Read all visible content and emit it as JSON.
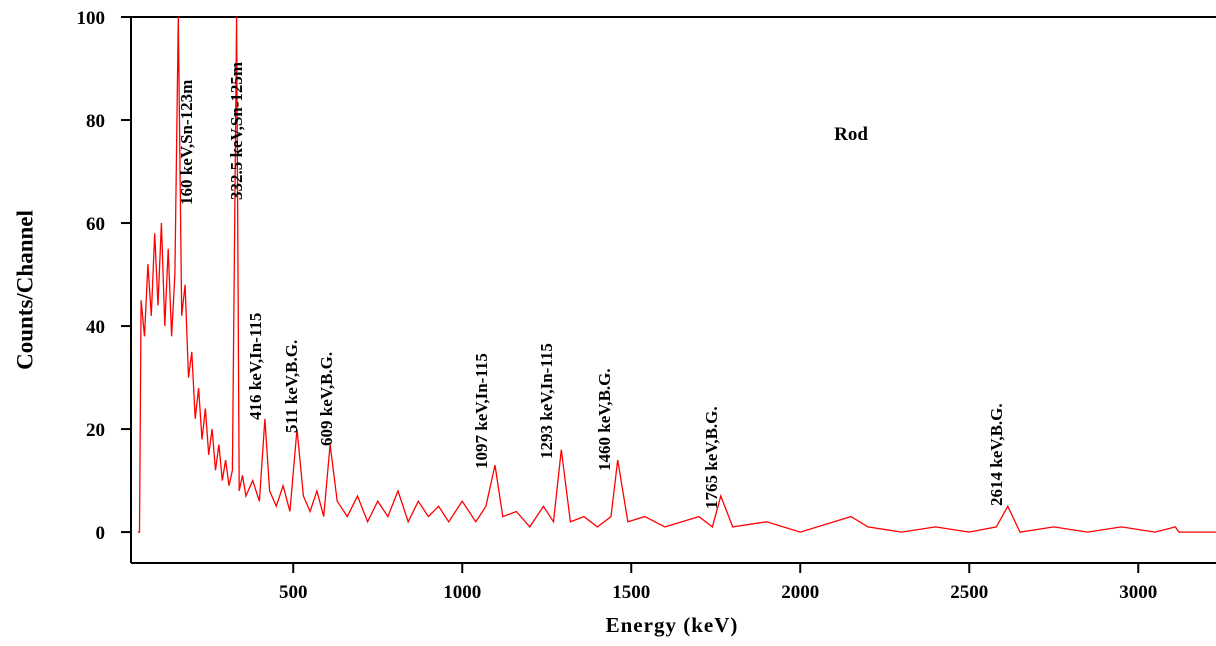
{
  "chart_data": {
    "type": "line",
    "ylabel": "Counts/Channel",
    "xlabel": "Energy (keV)",
    "series_label": "Rod",
    "annotations": [
      "160 keV,Sn-123m",
      "332.5 keV,Sn-125m",
      "416 keV,In-115",
      "511 keV,B.G.",
      "609 keV,B.G.",
      "1097 keV,In-115",
      "1293 keV,In-115",
      "1460 keV,B.G.",
      "1765 keV,B.G.",
      "2614 keV,B.G."
    ],
    "x": [
      40,
      45,
      50,
      60,
      70,
      80,
      90,
      100,
      110,
      120,
      130,
      140,
      150,
      160,
      170,
      180,
      190,
      200,
      210,
      220,
      230,
      240,
      250,
      260,
      270,
      280,
      290,
      300,
      310,
      320,
      332.5,
      340,
      350,
      360,
      380,
      400,
      416,
      430,
      450,
      470,
      490,
      511,
      530,
      550,
      570,
      590,
      609,
      630,
      660,
      690,
      720,
      750,
      780,
      810,
      840,
      870,
      900,
      930,
      960,
      1000,
      1040,
      1070,
      1097,
      1120,
      1160,
      1200,
      1240,
      1270,
      1293,
      1320,
      1360,
      1400,
      1440,
      1460,
      1490,
      1540,
      1600,
      1650,
      1700,
      1740,
      1765,
      1800,
      1900,
      2000,
      2100,
      2150,
      2200,
      2300,
      2400,
      2500,
      2580,
      2614,
      2650,
      2750,
      2850,
      2950,
      3050,
      3110,
      3120,
      3230
    ],
    "series": [
      {
        "color": "#ff0000",
        "values": [
          0,
          0,
          45,
          38,
          52,
          42,
          58,
          44,
          60,
          40,
          55,
          38,
          50,
          100,
          42,
          48,
          30,
          35,
          22,
          28,
          18,
          24,
          15,
          20,
          12,
          17,
          10,
          14,
          9,
          12,
          100,
          8,
          11,
          7,
          10,
          6,
          22,
          8,
          5,
          9,
          4,
          20,
          7,
          4,
          8,
          3,
          17,
          6,
          3,
          7,
          2,
          6,
          3,
          8,
          2,
          6,
          3,
          5,
          2,
          6,
          2,
          5,
          13,
          3,
          4,
          1,
          5,
          2,
          16,
          2,
          3,
          1,
          3,
          14,
          2,
          3,
          1,
          2,
          3,
          1,
          7,
          1,
          2,
          0,
          2,
          3,
          1,
          0,
          1,
          0,
          1,
          5,
          0,
          1,
          0,
          1,
          0,
          1,
          0,
          0
        ]
      }
    ],
    "xlim": [
      20,
      3230
    ],
    "ylim": [
      -6,
      100
    ],
    "xticks": [
      500,
      1000,
      1500,
      2000,
      2500,
      3000
    ],
    "yticks": [
      0,
      20,
      40,
      60,
      80,
      100
    ]
  }
}
